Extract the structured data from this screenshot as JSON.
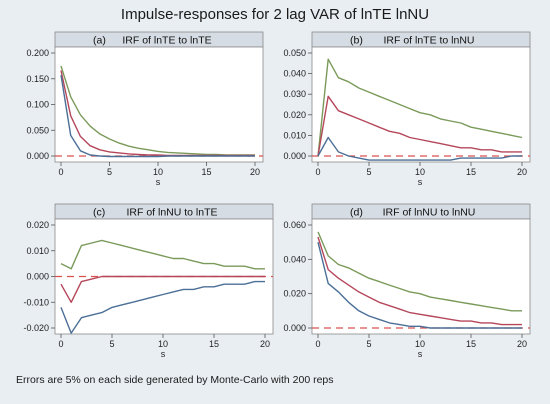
{
  "title": "Impulse-responses for 2 lag VAR of lnTE lnNU",
  "footnote": "Errors are 5% on each side generated by Monte-Carlo with 200 reps",
  "chart_data": [
    {
      "type": "line",
      "panel": "(a)",
      "title": "IRF of lnTE to lnTE",
      "xlabel": "s",
      "xlim": [
        0,
        20
      ],
      "ylim": [
        0,
        0.2
      ],
      "xticks": [
        0,
        5,
        10,
        15,
        20
      ],
      "yticks": [
        "0.000",
        "0.050",
        "0.100",
        "0.150",
        "0.200"
      ],
      "x": [
        0,
        1,
        2,
        3,
        4,
        5,
        6,
        7,
        8,
        9,
        10,
        11,
        12,
        13,
        14,
        15,
        16,
        17,
        18,
        19,
        20
      ],
      "series": [
        {
          "color": "#7a9a5a",
          "values": [
            0.175,
            0.115,
            0.08,
            0.058,
            0.043,
            0.033,
            0.025,
            0.019,
            0.015,
            0.012,
            0.009,
            0.007,
            0.006,
            0.005,
            0.004,
            0.003,
            0.003,
            0.002,
            0.002,
            0.002,
            0.002
          ]
        },
        {
          "color": "#b5475b",
          "values": [
            0.166,
            0.078,
            0.038,
            0.02,
            0.012,
            0.008,
            0.006,
            0.004,
            0.003,
            0.002,
            0.002,
            0.001,
            0.001,
            0.001,
            0.001,
            0.001,
            0.001,
            0.001,
            0.001,
            0.001,
            0.001
          ]
        },
        {
          "color": "#4b6f97",
          "values": [
            0.157,
            0.04,
            0.01,
            0.002,
            0.0,
            -0.001,
            -0.001,
            -0.001,
            -0.001,
            -0.001,
            -0.001,
            0.0,
            0.0,
            0.0,
            0.0,
            0.0,
            0.0,
            0.0,
            0.0,
            0.0,
            0.0
          ]
        }
      ]
    },
    {
      "type": "line",
      "panel": "(b)",
      "title": "IRF of lnTE to lnNU",
      "xlabel": "s",
      "xlim": [
        0,
        20
      ],
      "ylim": [
        0,
        0.05
      ],
      "xticks": [
        0,
        5,
        10,
        15,
        20
      ],
      "yticks": [
        "0.000",
        "0.010",
        "0.020",
        "0.030",
        "0.040",
        "0.050"
      ],
      "x": [
        0,
        1,
        2,
        3,
        4,
        5,
        6,
        7,
        8,
        9,
        10,
        11,
        12,
        13,
        14,
        15,
        16,
        17,
        18,
        19,
        20
      ],
      "series": [
        {
          "color": "#7a9a5a",
          "values": [
            0.0,
            0.047,
            0.038,
            0.036,
            0.033,
            0.031,
            0.029,
            0.027,
            0.025,
            0.023,
            0.021,
            0.02,
            0.018,
            0.017,
            0.016,
            0.014,
            0.013,
            0.012,
            0.011,
            0.01,
            0.009
          ]
        },
        {
          "color": "#b5475b",
          "values": [
            0.0,
            0.029,
            0.022,
            0.02,
            0.018,
            0.016,
            0.014,
            0.012,
            0.011,
            0.009,
            0.008,
            0.007,
            0.006,
            0.005,
            0.004,
            0.004,
            0.003,
            0.003,
            0.002,
            0.002,
            0.002
          ]
        },
        {
          "color": "#4b6f97",
          "values": [
            0.0,
            0.009,
            0.002,
            0.0,
            -0.001,
            -0.002,
            -0.002,
            -0.002,
            -0.002,
            -0.002,
            -0.002,
            -0.002,
            -0.002,
            -0.002,
            -0.001,
            -0.001,
            -0.001,
            -0.001,
            -0.001,
            0.0,
            0.0
          ]
        }
      ]
    },
    {
      "type": "line",
      "panel": "(c)",
      "title": "IRF of lnNU to lnTE",
      "xlabel": "s",
      "xlim": [
        0,
        20
      ],
      "ylim": [
        -0.02,
        0.02
      ],
      "xticks": [
        0,
        5,
        10,
        15,
        20
      ],
      "yticks": [
        "-0.020",
        "-0.010",
        "0.000",
        "0.010",
        "0.020"
      ],
      "x": [
        0,
        1,
        2,
        3,
        4,
        5,
        6,
        7,
        8,
        9,
        10,
        11,
        12,
        13,
        14,
        15,
        16,
        17,
        18,
        19,
        20
      ],
      "series": [
        {
          "color": "#7a9a5a",
          "values": [
            0.005,
            0.003,
            0.012,
            0.013,
            0.014,
            0.013,
            0.012,
            0.011,
            0.01,
            0.009,
            0.008,
            0.007,
            0.007,
            0.006,
            0.005,
            0.005,
            0.004,
            0.004,
            0.004,
            0.003,
            0.003
          ]
        },
        {
          "color": "#b5475b",
          "values": [
            -0.003,
            -0.01,
            -0.002,
            -0.001,
            0.0,
            0.0,
            0.0,
            0.0,
            0.0,
            0.0,
            0.0,
            0.0,
            0.0,
            0.0,
            0.0,
            0.0,
            0.0,
            0.0,
            0.0,
            0.0,
            0.0
          ]
        },
        {
          "color": "#4b6f97",
          "values": [
            -0.012,
            -0.022,
            -0.016,
            -0.015,
            -0.014,
            -0.012,
            -0.011,
            -0.01,
            -0.009,
            -0.008,
            -0.007,
            -0.006,
            -0.005,
            -0.005,
            -0.004,
            -0.004,
            -0.003,
            -0.003,
            -0.003,
            -0.002,
            -0.002
          ]
        }
      ]
    },
    {
      "type": "line",
      "panel": "(d)",
      "title": "IRF of lnNU to lnNU",
      "xlabel": "s",
      "xlim": [
        0,
        20
      ],
      "ylim": [
        0,
        0.06
      ],
      "xticks": [
        0,
        5,
        10,
        15,
        20
      ],
      "yticks": [
        "0.000",
        "0.020",
        "0.040",
        "0.060"
      ],
      "x": [
        0,
        1,
        2,
        3,
        4,
        5,
        6,
        7,
        8,
        9,
        10,
        11,
        12,
        13,
        14,
        15,
        16,
        17,
        18,
        19,
        20
      ],
      "series": [
        {
          "color": "#7a9a5a",
          "values": [
            0.056,
            0.042,
            0.037,
            0.035,
            0.032,
            0.029,
            0.027,
            0.025,
            0.023,
            0.021,
            0.02,
            0.018,
            0.017,
            0.016,
            0.015,
            0.014,
            0.013,
            0.012,
            0.011,
            0.01,
            0.01
          ]
        },
        {
          "color": "#b5475b",
          "values": [
            0.053,
            0.034,
            0.029,
            0.025,
            0.021,
            0.018,
            0.015,
            0.013,
            0.011,
            0.009,
            0.008,
            0.007,
            0.006,
            0.005,
            0.004,
            0.004,
            0.003,
            0.003,
            0.002,
            0.002,
            0.002
          ]
        },
        {
          "color": "#4b6f97",
          "values": [
            0.05,
            0.026,
            0.021,
            0.015,
            0.01,
            0.007,
            0.005,
            0.003,
            0.002,
            0.001,
            0.001,
            0.0,
            0.0,
            0.0,
            0.0,
            0.0,
            0.0,
            0.0,
            0.0,
            0.0,
            0.0
          ]
        }
      ]
    }
  ],
  "colors": {
    "background": "#e9eef2",
    "panel_header": "#d5dce3",
    "plot_area": "#ffffff",
    "zero_line": "#d9504f"
  }
}
